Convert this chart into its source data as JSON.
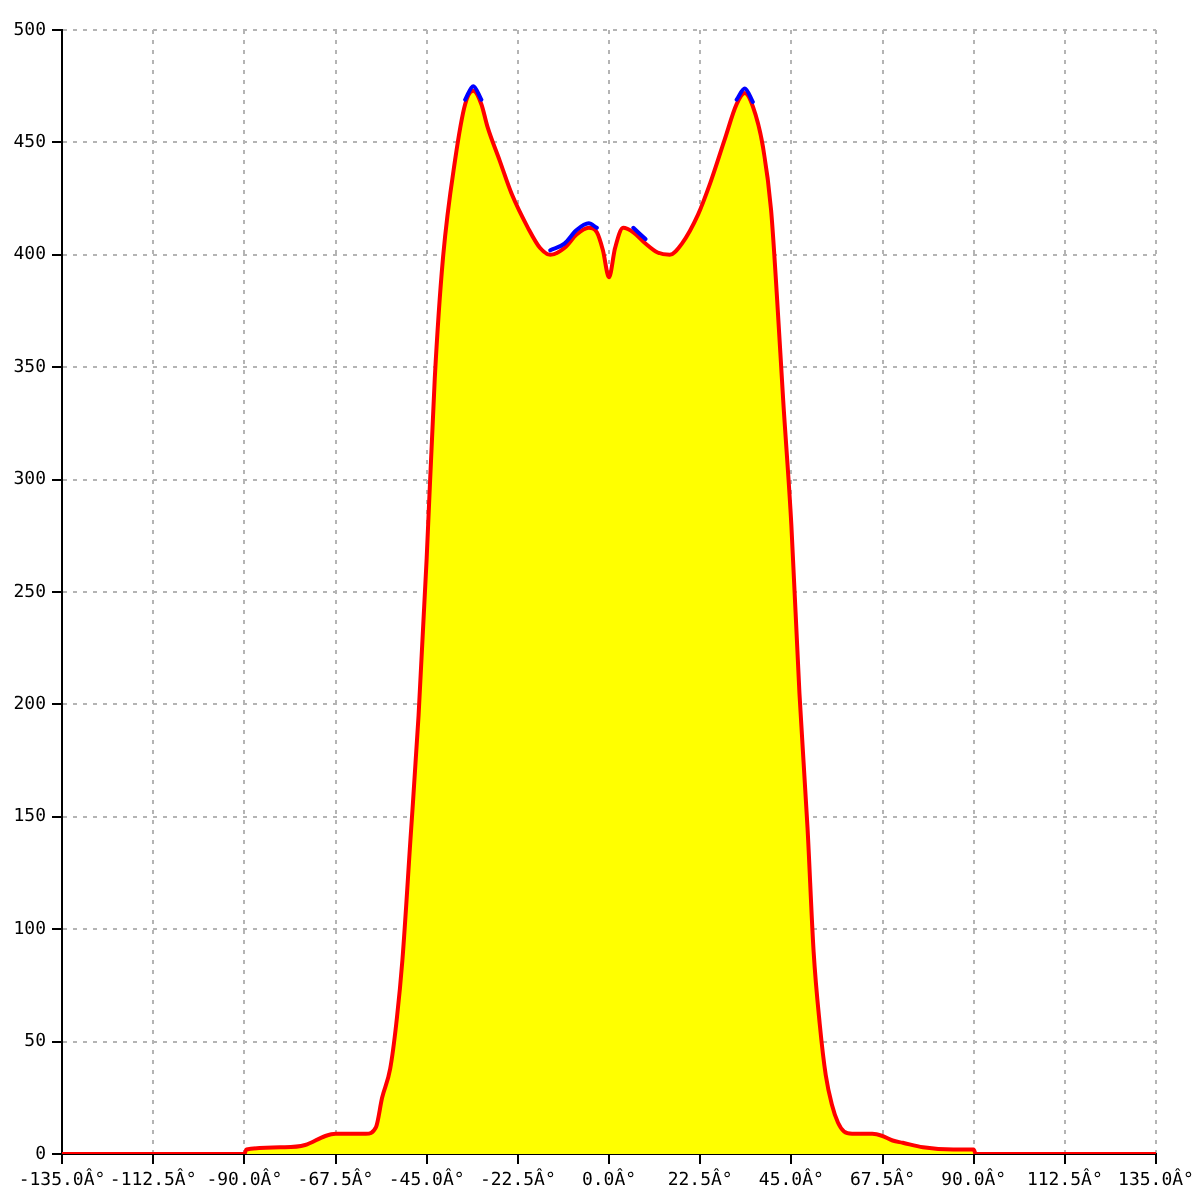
{
  "chart_data": {
    "type": "line",
    "x": [
      -135,
      -90,
      -89.5,
      -80,
      -75,
      -70,
      -67.5,
      -65,
      -60,
      -57.5,
      -56,
      -54,
      -52.5,
      -51,
      -49,
      -47,
      -45,
      -43,
      -41,
      -38,
      -35.5,
      -33.5,
      -31.5,
      -30,
      -27,
      -24,
      -20,
      -17,
      -14.5,
      -11,
      -8,
      -5,
      -3,
      -1.5,
      0,
      1.5,
      3.5,
      6,
      9,
      12,
      15,
      18,
      22,
      25,
      28.5,
      31.5,
      33.5,
      35.5,
      38,
      40,
      41.5,
      43,
      45,
      47,
      49,
      50.5,
      52,
      53.5,
      55,
      56.5,
      58,
      60,
      65,
      67.5,
      70,
      72.5,
      77.5,
      85,
      90,
      90.5,
      135
    ],
    "series": [
      {
        "type": "area",
        "color": "#ffff00",
        "values": [
          0,
          0,
          2,
          3,
          4,
          8,
          9,
          9,
          9,
          12,
          25,
          38,
          58,
          86,
          140,
          195,
          265,
          345,
          398,
          442,
          467,
          473,
          467,
          457,
          442,
          427,
          412,
          403,
          400,
          403,
          409,
          412,
          410,
          402,
          390,
          403,
          412,
          410,
          405,
          401,
          400,
          405,
          418,
          432,
          451,
          467,
          472,
          466,
          448,
          420,
          380,
          335,
          280,
          205,
          145,
          90,
          58,
          35,
          22,
          14,
          10,
          9,
          9,
          8,
          6,
          5,
          3,
          2,
          2,
          0,
          0
        ]
      },
      {
        "type": "line",
        "color": "#0000ff",
        "values": [
          null,
          null,
          null,
          null,
          null,
          null,
          null,
          null,
          null,
          null,
          null,
          null,
          null,
          null,
          null,
          null,
          null,
          null,
          null,
          null,
          469,
          475,
          469,
          null,
          null,
          null,
          null,
          null,
          402,
          405,
          411,
          414,
          412,
          null,
          null,
          null,
          null,
          412,
          407,
          null,
          null,
          null,
          null,
          null,
          null,
          469,
          474,
          468,
          null,
          null,
          null,
          null,
          null,
          null,
          null,
          null,
          null,
          null,
          null,
          null,
          null,
          null,
          null,
          null,
          null,
          null,
          null,
          null,
          null,
          null,
          null
        ]
      }
    ],
    "xlim": [
      -135,
      135
    ],
    "xticks": [
      {
        "value": -135,
        "label": "-135.0Â°"
      },
      {
        "value": -112.5,
        "label": "-112.5Â°"
      },
      {
        "value": -90,
        "label": "-90.0Â°"
      },
      {
        "value": -67.5,
        "label": "-67.5Â°"
      },
      {
        "value": -45,
        "label": "-45.0Â°"
      },
      {
        "value": -22.5,
        "label": "-22.5Â°"
      },
      {
        "value": 0,
        "label": "0.0Â°"
      },
      {
        "value": 22.5,
        "label": "22.5Â°"
      },
      {
        "value": 45,
        "label": "45.0Â°"
      },
      {
        "value": 67.5,
        "label": "67.5Â°"
      },
      {
        "value": 90,
        "label": "90.0Â°"
      },
      {
        "value": 112.5,
        "label": "112.5Â°"
      },
      {
        "value": 135,
        "label": "135.0Â°"
      }
    ],
    "ylim": [
      0,
      500
    ],
    "yticks": [
      0,
      50,
      100,
      150,
      200,
      250,
      300,
      350,
      400,
      450,
      500
    ],
    "grid": true
  }
}
